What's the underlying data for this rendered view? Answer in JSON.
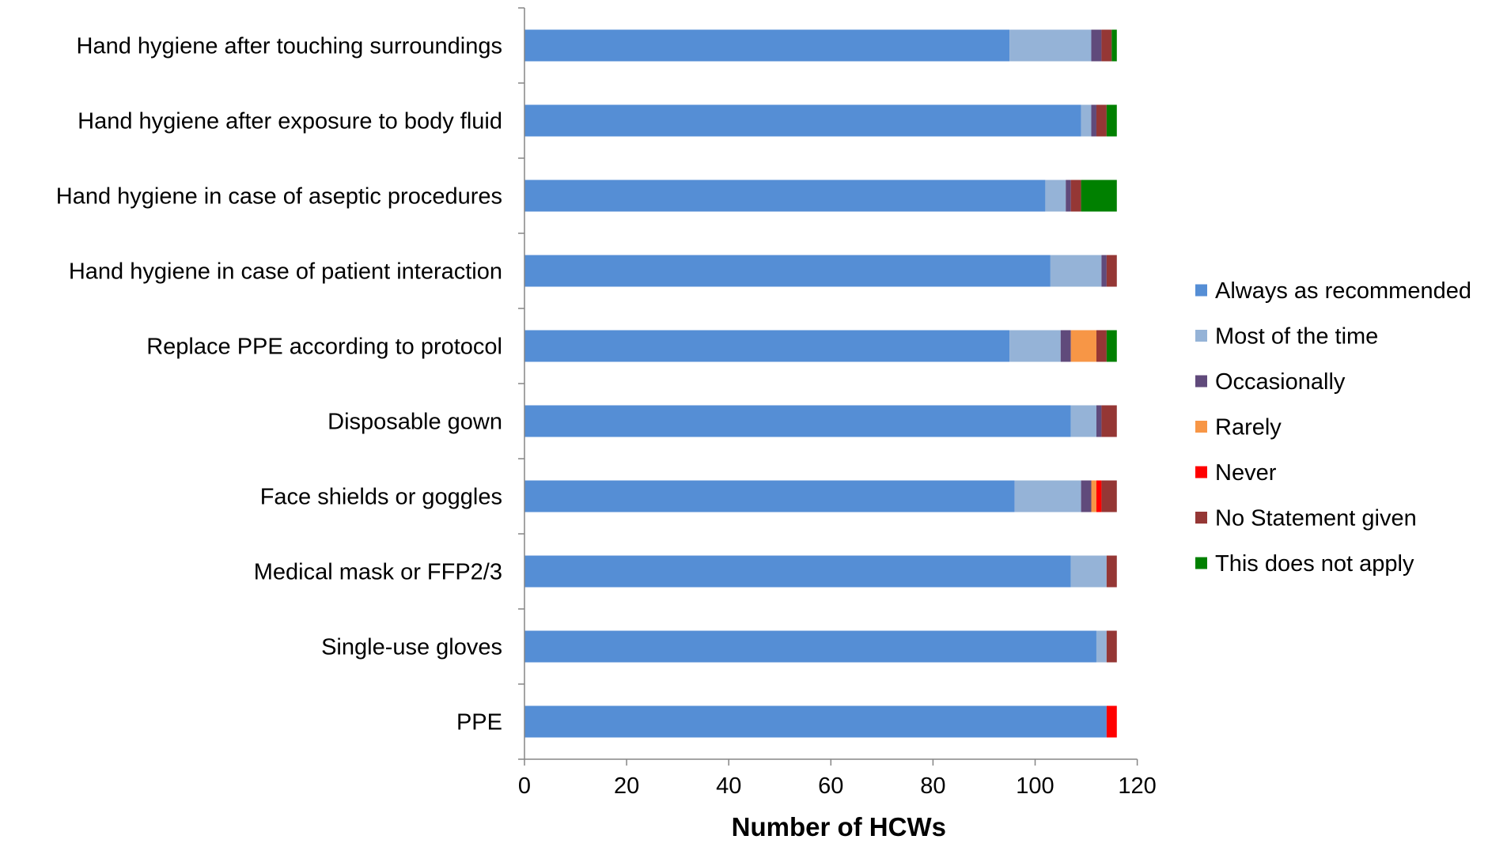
{
  "chart_data": {
    "type": "bar",
    "orientation": "horizontal",
    "stacked": true,
    "title": "",
    "xlabel": "Number of HCWs",
    "ylabel": "",
    "xlim": [
      0,
      120
    ],
    "x_ticks": [
      0,
      20,
      40,
      60,
      80,
      100,
      120
    ],
    "grid": false,
    "legend_position": "right",
    "categories": [
      "Hand hygiene after touching surroundings",
      "Hand hygiene after exposure to body fluid",
      "Hand hygiene in case of aseptic procedures",
      "Hand hygiene in case of patient interaction",
      "Replace PPE according to protocol",
      "Disposable gown",
      "Face shields or goggles",
      "Medical mask or FFP2/3",
      "Single-use gloves",
      "PPE"
    ],
    "series": [
      {
        "name": "Always as recommended",
        "color": "#558ED5",
        "values": [
          95,
          109,
          102,
          103,
          95,
          107,
          96,
          107,
          112,
          114
        ]
      },
      {
        "name": "Most of the time",
        "color": "#95B3D7",
        "values": [
          16,
          2,
          4,
          10,
          10,
          5,
          13,
          7,
          2,
          0
        ]
      },
      {
        "name": "Occasionally",
        "color": "#604A7B",
        "values": [
          2,
          1,
          1,
          1,
          2,
          1,
          2,
          0,
          0,
          0
        ]
      },
      {
        "name": "Rarely",
        "color": "#F79646",
        "values": [
          0,
          0,
          0,
          0,
          5,
          0,
          1,
          0,
          0,
          0
        ]
      },
      {
        "name": "Never",
        "color": "#FF0000",
        "values": [
          0,
          0,
          0,
          0,
          0,
          0,
          1,
          0,
          0,
          2
        ]
      },
      {
        "name": "No Statement given",
        "color": "#953735",
        "values": [
          2,
          2,
          2,
          2,
          2,
          3,
          3,
          2,
          2,
          0
        ]
      },
      {
        "name": "This does not apply",
        "color": "#008000",
        "values": [
          1,
          2,
          7,
          0,
          2,
          0,
          0,
          0,
          0,
          0
        ]
      }
    ]
  }
}
